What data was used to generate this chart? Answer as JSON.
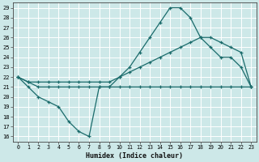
{
  "title": "",
  "xlabel": "Humidex (Indice chaleur)",
  "xlim": [
    -0.5,
    23.5
  ],
  "ylim": [
    15.5,
    29.5
  ],
  "xticks": [
    0,
    1,
    2,
    3,
    4,
    5,
    6,
    7,
    8,
    9,
    10,
    11,
    12,
    13,
    14,
    15,
    16,
    17,
    18,
    19,
    20,
    21,
    22,
    23
  ],
  "yticks": [
    16,
    17,
    18,
    19,
    20,
    21,
    22,
    23,
    24,
    25,
    26,
    27,
    28,
    29
  ],
  "bg_color": "#cde8e8",
  "line_color": "#1a6b6b",
  "grid_color": "#ffffff",
  "line1_x": [
    0,
    1,
    2,
    3,
    4,
    5,
    6,
    7,
    8,
    9,
    10,
    11,
    12,
    13,
    14,
    15,
    16,
    17,
    18,
    19,
    20,
    21,
    22,
    23
  ],
  "line1_y": [
    22,
    21,
    20,
    19.5,
    19,
    17.5,
    16.5,
    16,
    21,
    21,
    21,
    21,
    21,
    21,
    21,
    21,
    21,
    21,
    21,
    21,
    21,
    21,
    21,
    21
  ],
  "line2_x": [
    0,
    1,
    2,
    3,
    4,
    5,
    6,
    7,
    8,
    9,
    10,
    11,
    12,
    13,
    14,
    15,
    16,
    17,
    18,
    19,
    20,
    21,
    22,
    23
  ],
  "line2_y": [
    22,
    21.5,
    21.5,
    21.5,
    21.5,
    21.5,
    21.5,
    21.5,
    21.5,
    21.5,
    22,
    22.5,
    23,
    23.5,
    24,
    24.5,
    25,
    25.5,
    26,
    26,
    25.5,
    25,
    24.5,
    21
  ],
  "line3_x": [
    0,
    1,
    2,
    3,
    4,
    5,
    6,
    7,
    8,
    9,
    10,
    11,
    12,
    13,
    14,
    15,
    16,
    17,
    18,
    19,
    20,
    21,
    22,
    23
  ],
  "line3_y": [
    22,
    21.5,
    21,
    21,
    21,
    21,
    21,
    21,
    21,
    21,
    22,
    23,
    24.5,
    26,
    27.5,
    29,
    29,
    28,
    26,
    25,
    24,
    24,
    23,
    21
  ]
}
